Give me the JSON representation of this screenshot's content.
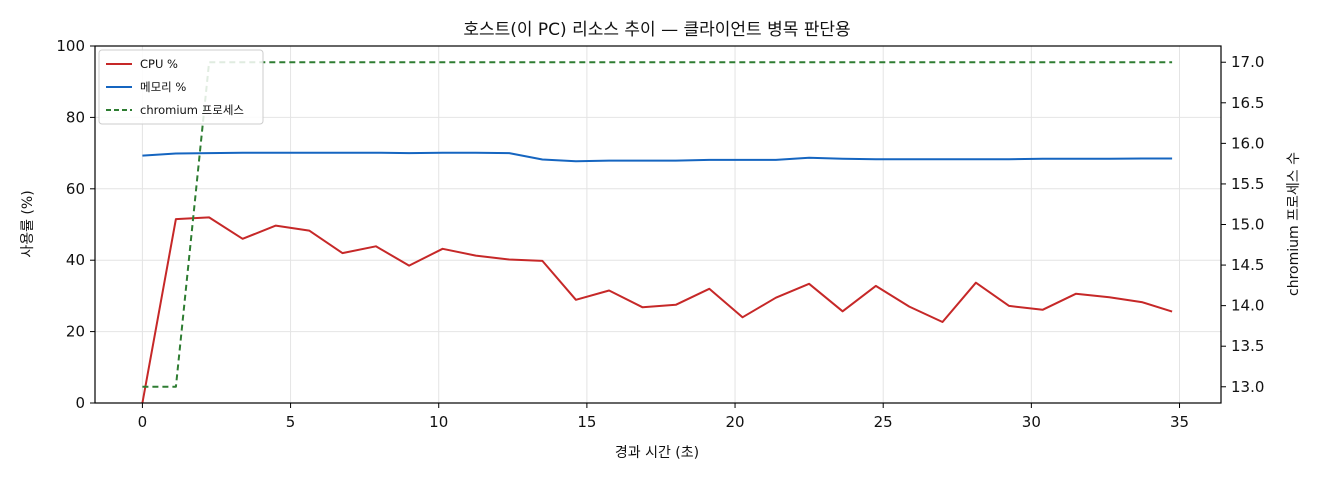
{
  "chart_data": {
    "type": "line",
    "title": "호스트(이 PC) 리소스 추이 — 클라이언트 병목 판단용",
    "xlabel": "경과 시간 (초)",
    "ylabel": "사용률 (%)",
    "y2label": "chromium 프로세스 수",
    "xlim": [
      -1.6,
      36.4
    ],
    "ylim": [
      0,
      100
    ],
    "y2lim": [
      12.8,
      17.2
    ],
    "xticks": [
      0,
      5,
      10,
      15,
      20,
      25,
      30,
      35
    ],
    "yticks": [
      0,
      20,
      40,
      60,
      80,
      100
    ],
    "y2ticks": [
      13.0,
      13.5,
      14.0,
      14.5,
      15.0,
      15.5,
      16.0,
      16.5,
      17.0
    ],
    "grid": true,
    "legend_position": "top-left",
    "x": [
      0,
      1.13,
      2.25,
      3.38,
      4.5,
      5.63,
      6.75,
      7.88,
      9.0,
      10.13,
      11.25,
      12.38,
      13.5,
      14.63,
      15.75,
      16.88,
      18.0,
      19.13,
      20.25,
      21.38,
      22.5,
      23.63,
      24.75,
      25.88,
      27.0,
      28.13,
      29.25,
      30.38,
      31.5,
      32.63,
      33.75,
      34.75
    ],
    "series": [
      {
        "name": "CPU %",
        "axis": "left",
        "style": "solid",
        "color": "#c62828",
        "values": [
          0,
          51.5,
          52,
          46,
          49.7,
          48.3,
          42,
          43.9,
          38.5,
          43.2,
          41.3,
          40.2,
          39.8,
          28.9,
          31.5,
          26.8,
          27.5,
          32,
          24,
          29.5,
          33.4,
          25.7,
          32.8,
          27,
          22.7,
          33.7,
          27.2,
          26.1,
          30.6,
          29.6,
          28.2,
          25.6
        ]
      },
      {
        "name": "메모리 %",
        "axis": "left",
        "style": "solid",
        "color": "#1565c0",
        "values": [
          69.3,
          69.9,
          70.0,
          70.1,
          70.1,
          70.1,
          70.1,
          70.1,
          70.0,
          70.1,
          70.1,
          70.0,
          68.2,
          67.7,
          67.9,
          67.9,
          67.9,
          68.1,
          68.1,
          68.1,
          68.7,
          68.4,
          68.3,
          68.3,
          68.3,
          68.3,
          68.3,
          68.4,
          68.4,
          68.4,
          68.5,
          68.5
        ]
      },
      {
        "name": "chromium 프로세스",
        "axis": "right",
        "style": "dashed",
        "color": "#2e7d32",
        "values": [
          13,
          13,
          17,
          17,
          17,
          17,
          17,
          17,
          17,
          17,
          17,
          17,
          17,
          17,
          17,
          17,
          17,
          17,
          17,
          17,
          17,
          17,
          17,
          17,
          17,
          17,
          17,
          17,
          17,
          17,
          17,
          17
        ]
      }
    ]
  }
}
